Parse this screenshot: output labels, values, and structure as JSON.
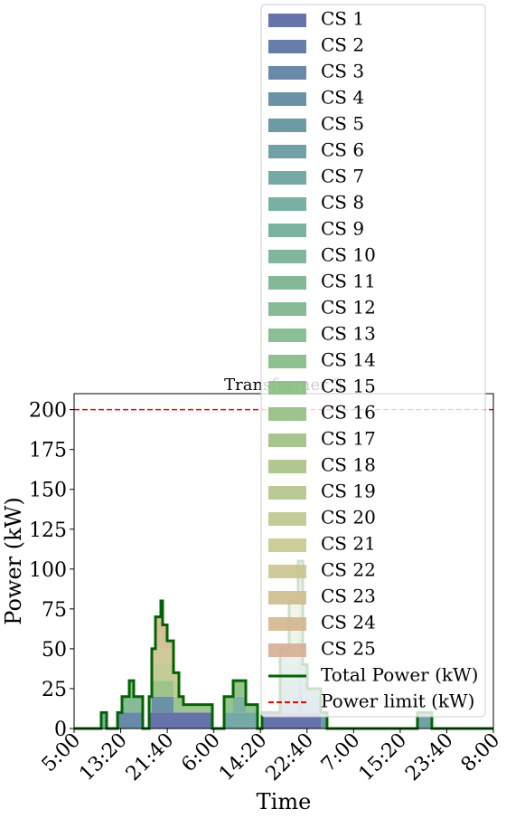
{
  "chart_data": {
    "type": "stacked-step-area",
    "title": "Transformer 3",
    "xlabel": "Time",
    "ylabel": "Power (kW)",
    "x": [
      0,
      291,
      349,
      466,
      514,
      592,
      640,
      737,
      805,
      834,
      873,
      931,
      950,
      999,
      1067,
      1125,
      1173,
      1484,
      1610,
      1707,
      1843,
      1969,
      2017,
      2211,
      2308,
      2405,
      2454,
      2502,
      2648,
      2715,
      3685,
      3840,
      4500
    ],
    "xlim": [
      0,
      4500
    ],
    "xticks": [
      {
        "value": 0,
        "label": "5:00"
      },
      {
        "value": 500,
        "label": "13:20"
      },
      {
        "value": 1000,
        "label": "21:40"
      },
      {
        "value": 1500,
        "label": "6:00"
      },
      {
        "value": 2000,
        "label": "14:20"
      },
      {
        "value": 2500,
        "label": "22:40"
      },
      {
        "value": 3000,
        "label": "7:00"
      },
      {
        "value": 3500,
        "label": "15:20"
      },
      {
        "value": 4000,
        "label": "23:40"
      },
      {
        "value": 4500,
        "label": "8:00"
      }
    ],
    "ylim": [
      0,
      210
    ],
    "yticks": [
      0,
      25,
      50,
      75,
      100,
      125,
      150,
      175,
      200
    ],
    "series": [
      {
        "name": "CS 1",
        "color": "#5563a3",
        "values": [
          0,
          0,
          0,
          0,
          0,
          0,
          0,
          0,
          10,
          10,
          10,
          10,
          10,
          10,
          10,
          10,
          10,
          0,
          0,
          0,
          0,
          0,
          10,
          10,
          10,
          10,
          10,
          10,
          0,
          0,
          0,
          0,
          0
        ]
      },
      {
        "name": "CS 2",
        "color": "#5570a0",
        "values": [
          0,
          0,
          0,
          0,
          0,
          0,
          0,
          0,
          0,
          0,
          0,
          0,
          0,
          0,
          0,
          0,
          0,
          0,
          0,
          0,
          0,
          0,
          0,
          0,
          0,
          15,
          0,
          0,
          0,
          0,
          0,
          0,
          0
        ]
      },
      {
        "name": "CS 3",
        "color": "#587c9f",
        "values": [
          0,
          0,
          0,
          10,
          10,
          10,
          10,
          0,
          0,
          0,
          0,
          0,
          0,
          0,
          0,
          0,
          0,
          0,
          0,
          0,
          0,
          0,
          0,
          0,
          0,
          0,
          0,
          0,
          0,
          0,
          0,
          0,
          0
        ]
      },
      {
        "name": "CS 4",
        "color": "#5a869c",
        "values": [
          0,
          0,
          0,
          0,
          0,
          0,
          0,
          0,
          0,
          10,
          10,
          10,
          10,
          10,
          0,
          0,
          0,
          0,
          0,
          0,
          0,
          0,
          0,
          0,
          0,
          0,
          0,
          0,
          0,
          0,
          0,
          0,
          0
        ]
      },
      {
        "name": "CS 5",
        "color": "#5e8f9a",
        "values": [
          0,
          0,
          0,
          0,
          0,
          0,
          0,
          0,
          0,
          0,
          0,
          0,
          0,
          0,
          0,
          0,
          0,
          0,
          0,
          0,
          0,
          0,
          0,
          10,
          10,
          10,
          10,
          10,
          10,
          0,
          0,
          0,
          0
        ]
      },
      {
        "name": "CS 6",
        "color": "#61979a",
        "values": [
          0,
          0,
          0,
          0,
          0,
          0,
          0,
          0,
          0,
          0,
          0,
          0,
          0,
          0,
          0,
          0,
          0,
          0,
          0,
          0,
          0,
          0,
          0,
          0,
          0,
          0,
          0,
          0,
          0,
          0,
          10,
          0,
          0
        ]
      },
      {
        "name": "CS 7",
        "color": "#66a09b",
        "values": [
          0,
          0,
          0,
          0,
          0,
          0,
          0,
          0,
          0,
          0,
          0,
          0,
          0,
          0,
          0,
          0,
          0,
          0,
          10,
          10,
          10,
          0,
          0,
          0,
          0,
          0,
          0,
          0,
          0,
          0,
          0,
          0,
          0
        ]
      },
      {
        "name": "CS 8",
        "color": "#6aa79a",
        "values": [
          0,
          0,
          0,
          0,
          0,
          0,
          0,
          0,
          0,
          0,
          0,
          0,
          0,
          0,
          0,
          0,
          0,
          0,
          0,
          0,
          0,
          0,
          0,
          10,
          10,
          10,
          10,
          5,
          0,
          0,
          0,
          0,
          0
        ]
      },
      {
        "name": "CS 9",
        "color": "#6eab96",
        "values": [
          0,
          10,
          0,
          0,
          0,
          0,
          0,
          0,
          0,
          0,
          0,
          0,
          0,
          0,
          0,
          0,
          0,
          0,
          0,
          10,
          0,
          0,
          0,
          0,
          0,
          0,
          0,
          0,
          0,
          0,
          0,
          0,
          0
        ]
      },
      {
        "name": "CS 10",
        "color": "#72ae92",
        "values": [
          0,
          0,
          0,
          0,
          0,
          0,
          0,
          0,
          0,
          0,
          0,
          0,
          0,
          0,
          0,
          0,
          0,
          0,
          0,
          0,
          0,
          0,
          0,
          0,
          0,
          0,
          0,
          0,
          0,
          0,
          0,
          0,
          0
        ]
      },
      {
        "name": "CS 11",
        "color": "#76b18e",
        "values": [
          0,
          0,
          0,
          0,
          0,
          0,
          0,
          0,
          0,
          0,
          0,
          0,
          0,
          0,
          0,
          0,
          0,
          0,
          0,
          0,
          0,
          0,
          0,
          10,
          10,
          10,
          10,
          0,
          0,
          0,
          0,
          0,
          0
        ]
      },
      {
        "name": "CS 12",
        "color": "#7ab48b",
        "values": [
          0,
          0,
          0,
          0,
          10,
          10,
          10,
          0,
          0,
          0,
          0,
          0,
          0,
          0,
          0,
          0,
          0,
          0,
          0,
          0,
          0,
          0,
          0,
          0,
          0,
          0,
          0,
          0,
          0,
          0,
          0,
          0,
          0
        ]
      },
      {
        "name": "CS 13",
        "color": "#7db788",
        "values": [
          0,
          0,
          0,
          0,
          0,
          0,
          0,
          0,
          0,
          0,
          0,
          0,
          0,
          0,
          0,
          0,
          0,
          0,
          0,
          0,
          0,
          0,
          0,
          10,
          10,
          10,
          0,
          0,
          0,
          0,
          0,
          0,
          0
        ]
      },
      {
        "name": "CS 14",
        "color": "#82ba83",
        "values": [
          0,
          0,
          0,
          0,
          0,
          10,
          0,
          0,
          0,
          0,
          0,
          0,
          0,
          0,
          0,
          0,
          0,
          0,
          0,
          0,
          0,
          0,
          0,
          0,
          0,
          0,
          0,
          0,
          0,
          0,
          0,
          0,
          0
        ]
      },
      {
        "name": "CS 15",
        "color": "#88bc80",
        "values": [
          0,
          0,
          0,
          0,
          0,
          0,
          0,
          0,
          0,
          0,
          0,
          0,
          0,
          0,
          0,
          0,
          0,
          0,
          10,
          10,
          5,
          0,
          0,
          0,
          0,
          0,
          0,
          0,
          0,
          0,
          0,
          0,
          0
        ]
      },
      {
        "name": "CS 16",
        "color": "#92be80",
        "values": [
          0,
          0,
          0,
          0,
          0,
          0,
          0,
          0,
          10,
          10,
          10,
          10,
          10,
          10,
          10,
          10,
          5,
          0,
          0,
          0,
          0,
          0,
          0,
          0,
          0,
          0,
          0,
          0,
          0,
          0,
          0,
          0,
          0
        ]
      },
      {
        "name": "CS 17",
        "color": "#9dbf82",
        "values": [
          0,
          0,
          0,
          0,
          0,
          0,
          0,
          0,
          0,
          0,
          0,
          0,
          0,
          0,
          0,
          0,
          0,
          0,
          0,
          0,
          0,
          0,
          0,
          0,
          10,
          10,
          0,
          0,
          0,
          0,
          0,
          0,
          0
        ]
      },
      {
        "name": "CS 18",
        "color": "#a8c185",
        "values": [
          0,
          0,
          0,
          0,
          0,
          0,
          0,
          0,
          0,
          0,
          0,
          0,
          0,
          0,
          0,
          0,
          0,
          0,
          0,
          0,
          0,
          0,
          0,
          0,
          0,
          10,
          0,
          0,
          0,
          0,
          0,
          0,
          0
        ]
      },
      {
        "name": "CS 19",
        "color": "#b2c389",
        "values": [
          0,
          0,
          0,
          0,
          0,
          0,
          0,
          0,
          0,
          0,
          0,
          0,
          0,
          0,
          0,
          0,
          0,
          0,
          0,
          0,
          0,
          0,
          0,
          0,
          10,
          10,
          0,
          0,
          0,
          0,
          0,
          0,
          0
        ]
      },
      {
        "name": "CS 20",
        "color": "#bcc68b",
        "values": [
          0,
          0,
          0,
          0,
          0,
          0,
          0,
          0,
          0,
          10,
          10,
          10,
          10,
          10,
          10,
          0,
          0,
          0,
          0,
          0,
          0,
          0,
          0,
          0,
          0,
          0,
          0,
          0,
          0,
          0,
          0,
          0,
          0
        ]
      },
      {
        "name": "CS 21",
        "color": "#c6c98e",
        "values": [
          0,
          0,
          0,
          0,
          0,
          0,
          0,
          0,
          0,
          0,
          0,
          0,
          0,
          0,
          0,
          0,
          0,
          0,
          0,
          0,
          0,
          0,
          0,
          0,
          10,
          10,
          0,
          0,
          0,
          0,
          0,
          0,
          0
        ]
      },
      {
        "name": "CS 22",
        "color": "#cbc48f",
        "values": [
          0,
          0,
          0,
          0,
          0,
          0,
          0,
          0,
          0,
          10,
          10,
          10,
          10,
          10,
          5,
          0,
          0,
          0,
          0,
          0,
          0,
          0,
          0,
          0,
          0,
          0,
          0,
          0,
          0,
          0,
          0,
          0,
          0
        ]
      },
      {
        "name": "CS 23",
        "color": "#cfbd8e",
        "values": [
          0,
          0,
          0,
          0,
          0,
          0,
          0,
          0,
          0,
          0,
          10,
          10,
          5,
          0,
          0,
          0,
          0,
          0,
          0,
          0,
          0,
          0,
          0,
          0,
          0,
          0,
          0,
          0,
          0,
          0,
          0,
          0,
          0
        ]
      },
      {
        "name": "CS 24",
        "color": "#d3b68d",
        "values": [
          0,
          0,
          0,
          0,
          0,
          0,
          0,
          0,
          0,
          0,
          10,
          10,
          10,
          5,
          0,
          0,
          0,
          0,
          0,
          0,
          0,
          0,
          0,
          0,
          0,
          0,
          0,
          0,
          0,
          0,
          0,
          0,
          0
        ]
      },
      {
        "name": "CS 25",
        "color": "#d6ae95",
        "values": [
          0,
          0,
          0,
          0,
          0,
          0,
          0,
          0,
          0,
          0,
          0,
          10,
          0,
          0,
          0,
          0,
          0,
          0,
          0,
          0,
          0,
          0,
          0,
          0,
          0,
          0,
          0,
          0,
          0,
          0,
          0,
          0,
          0
        ]
      }
    ],
    "total": {
      "name": "Total Power (kW)",
      "color": "#006400",
      "values": [
        0,
        10,
        0,
        10,
        20,
        30,
        20,
        0,
        20,
        50,
        70,
        80,
        65,
        55,
        35,
        20,
        15,
        0,
        20,
        30,
        15,
        0,
        10,
        50,
        80,
        105,
        40,
        25,
        10,
        0,
        10,
        0,
        0
      ]
    },
    "limit": {
      "name": "Power limit (kW)",
      "color": "#ff0000",
      "value": 200
    }
  }
}
